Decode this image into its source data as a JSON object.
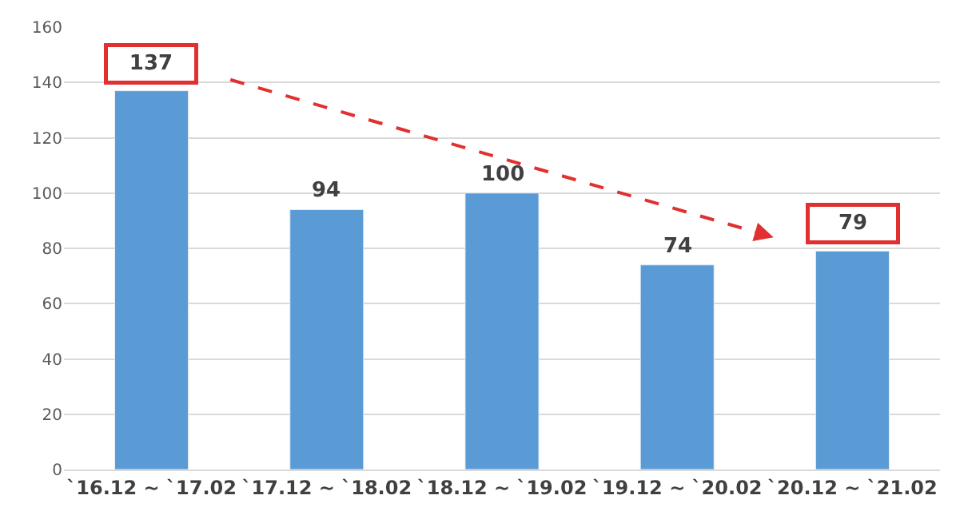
{
  "chart_data": {
    "type": "bar",
    "categories": [
      "`16.12 ~ `17.02",
      "`17.12 ~ `18.02",
      "`18.12 ~ `19.02",
      "`19.12 ~ `20.02",
      "`20.12 ~ `21.02"
    ],
    "values": [
      137,
      94,
      100,
      74,
      79
    ],
    "color": "#5b9bd5",
    "ylim": [
      0,
      160
    ],
    "yticks": [
      0,
      20,
      40,
      60,
      80,
      100,
      120,
      140,
      160
    ],
    "grid": "y",
    "data_labels": true,
    "legend": false
  }
}
